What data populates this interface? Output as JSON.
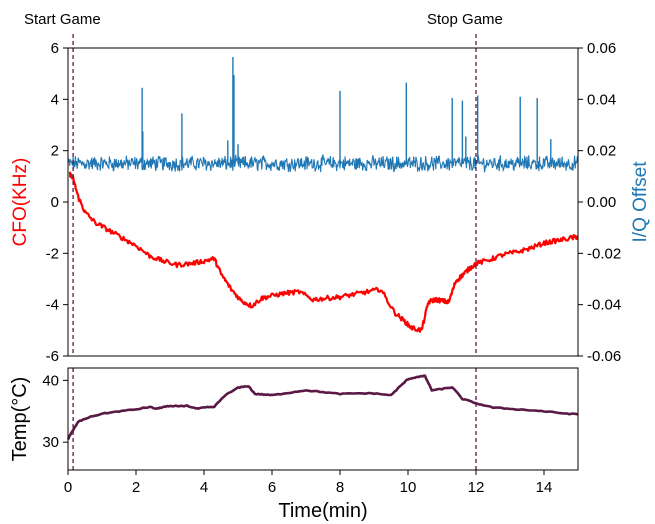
{
  "colors": {
    "cfo": "#ff0000",
    "iq": "#1f77b4",
    "temp": "#5a1846",
    "marker": "#5a1846",
    "axis": "#000000"
  },
  "annotations": {
    "start_label": "Start Game",
    "stop_label": "Stop Game"
  },
  "chart_data": [
    {
      "type": "line",
      "panel": "top",
      "xlim": [
        0,
        15
      ],
      "ylim_left": [
        -6,
        6
      ],
      "ylim_right": [
        -0.06,
        0.06
      ],
      "ylabel_left": "CFO(KHz)",
      "ylabel_right": "I/Q Offset",
      "left_ticks": [
        "-6",
        "-4",
        "-2",
        "0",
        "2",
        "4",
        "6"
      ],
      "right_ticks": [
        "-0.06",
        "-0.04",
        "-0.02",
        "0.00",
        "0.02",
        "0.04",
        "0.06"
      ],
      "vlines": [
        0.15,
        12.0
      ],
      "series": [
        {
          "name": "CFO",
          "axis": "left",
          "x": [
            0.05,
            0.15,
            0.3,
            0.5,
            0.8,
            1.2,
            1.6,
            2.0,
            2.4,
            2.8,
            3.2,
            3.6,
            4.0,
            4.3,
            4.5,
            4.8,
            5.1,
            5.4,
            5.7,
            6.0,
            6.4,
            6.8,
            7.2,
            7.6,
            8.0,
            8.4,
            8.8,
            9.2,
            9.6,
            9.9,
            10.1,
            10.4,
            10.6,
            10.8,
            11.0,
            11.2,
            11.4,
            11.6,
            11.8,
            12.0,
            12.4,
            12.8,
            13.2,
            13.6,
            14.0,
            14.4,
            14.8,
            15.0
          ],
          "y": [
            1.1,
            0.9,
            0.2,
            -0.4,
            -0.8,
            -1.1,
            -1.4,
            -1.7,
            -2.1,
            -2.3,
            -2.45,
            -2.4,
            -2.3,
            -2.2,
            -2.8,
            -3.4,
            -3.85,
            -4.05,
            -3.75,
            -3.65,
            -3.55,
            -3.5,
            -3.8,
            -3.75,
            -3.7,
            -3.6,
            -3.5,
            -3.4,
            -4.3,
            -4.65,
            -4.9,
            -5.0,
            -3.9,
            -3.8,
            -3.85,
            -3.9,
            -3.1,
            -2.85,
            -2.6,
            -2.4,
            -2.25,
            -2.05,
            -1.95,
            -1.8,
            -1.6,
            -1.5,
            -1.4,
            -1.35
          ]
        },
        {
          "name": "I/Q Offset",
          "axis": "right",
          "x": [
            0,
            15
          ],
          "y_mean": 0.015,
          "y_noise": 0.0025,
          "spikes": [
            {
              "x": 2.18,
              "y": 0.0445
            },
            {
              "x": 2.2,
              "y": 0.0275
            },
            {
              "x": 3.35,
              "y": 0.0345
            },
            {
              "x": 4.7,
              "y": 0.024
            },
            {
              "x": 4.85,
              "y": 0.0565
            },
            {
              "x": 4.88,
              "y": 0.0495
            },
            {
              "x": 5.0,
              "y": 0.0225
            },
            {
              "x": 8.0,
              "y": 0.0433
            },
            {
              "x": 9.95,
              "y": 0.0465
            },
            {
              "x": 11.3,
              "y": 0.0405
            },
            {
              "x": 11.6,
              "y": 0.0395
            },
            {
              "x": 11.7,
              "y": 0.0255
            },
            {
              "x": 12.05,
              "y": 0.0415
            },
            {
              "x": 13.3,
              "y": 0.041
            },
            {
              "x": 13.8,
              "y": 0.0405
            },
            {
              "x": 14.2,
              "y": 0.0245
            }
          ]
        }
      ]
    },
    {
      "type": "line",
      "panel": "bottom",
      "xlim": [
        0,
        15
      ],
      "ylim": [
        25.5,
        42
      ],
      "xlabel": "Time(min)",
      "ylabel": "Temp(°C)",
      "x_ticks": [
        "0",
        "2",
        "4",
        "6",
        "8",
        "10",
        "12",
        "14"
      ],
      "y_ticks": [
        "30",
        "40"
      ],
      "vlines": [
        0.15,
        12.0
      ],
      "series": [
        {
          "name": "Temp",
          "x": [
            0.0,
            0.1,
            0.3,
            0.6,
            1.0,
            1.5,
            2.0,
            2.4,
            2.6,
            2.8,
            3.0,
            3.5,
            3.8,
            4.0,
            4.3,
            4.6,
            5.0,
            5.3,
            5.5,
            5.8,
            6.0,
            6.5,
            7.0,
            7.5,
            8.0,
            8.5,
            9.0,
            9.5,
            9.8,
            10.0,
            10.3,
            10.5,
            10.7,
            11.0,
            11.3,
            11.6,
            12.0,
            12.5,
            13.0,
            13.5,
            14.0,
            14.5,
            15.0
          ],
          "y": [
            30.5,
            31.5,
            33.3,
            34.0,
            34.6,
            35.0,
            35.3,
            35.7,
            35.4,
            35.7,
            35.8,
            35.9,
            35.4,
            35.6,
            35.7,
            37.5,
            38.8,
            39.1,
            37.8,
            37.7,
            37.6,
            38.0,
            38.4,
            38.1,
            37.8,
            37.9,
            37.9,
            37.6,
            39.2,
            40.2,
            40.6,
            40.7,
            38.4,
            38.6,
            38.9,
            37.0,
            36.3,
            35.6,
            35.4,
            35.2,
            35.0,
            34.7,
            34.5
          ]
        }
      ]
    }
  ]
}
